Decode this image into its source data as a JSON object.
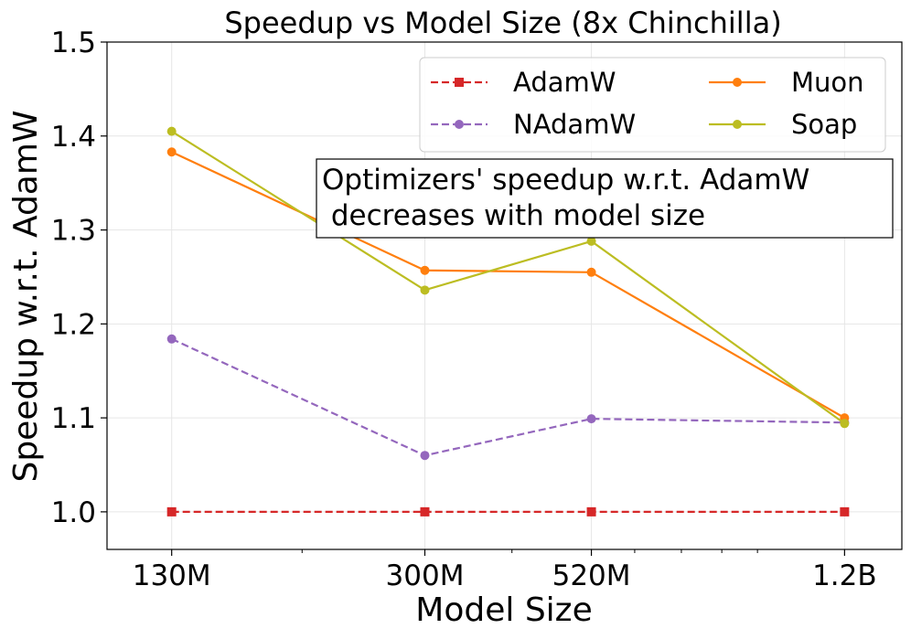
{
  "chart_data": {
    "type": "line",
    "title": "Speedup vs Model Size (8x Chinchilla)",
    "xlabel": "Model Size",
    "ylabel": "Speedup w.r.t. AdamW",
    "x_scale": "log",
    "categories": [
      "130M",
      "300M",
      "520M",
      "1.2B"
    ],
    "x_params": [
      130000000,
      300000000,
      520000000,
      1200000000
    ],
    "ylim": [
      0.96,
      1.5
    ],
    "yticks": [
      "1.0",
      "1.1",
      "1.2",
      "1.3",
      "1.4",
      "1.5"
    ],
    "ytick_values": [
      1.0,
      1.1,
      1.2,
      1.3,
      1.4,
      1.5
    ],
    "grid": true,
    "legend_position": "top-right",
    "series": [
      {
        "name": "AdamW",
        "values": [
          1.0,
          1.0,
          1.0,
          1.0
        ],
        "color": "#d62728",
        "dash": true,
        "marker": "square"
      },
      {
        "name": "NAdamW",
        "values": [
          1.184,
          1.06,
          1.099,
          1.095
        ],
        "color": "#9467bd",
        "dash": true,
        "marker": "circle"
      },
      {
        "name": "Muon",
        "values": [
          1.383,
          1.257,
          1.255,
          1.1
        ],
        "color": "#ff7f0e",
        "dash": false,
        "marker": "circle"
      },
      {
        "name": "Soap",
        "values": [
          1.405,
          1.236,
          1.288,
          1.094
        ],
        "color": "#bcbd22",
        "dash": false,
        "marker": "circle"
      }
    ],
    "annotation": {
      "line1": "Optimizers' speedup w.r.t. AdamW",
      "line2": " decreases with model size"
    }
  }
}
